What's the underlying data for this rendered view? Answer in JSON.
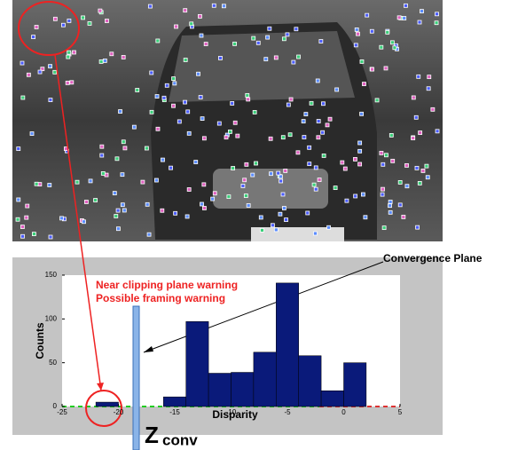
{
  "chart_data": {
    "type": "histogram",
    "bins": [
      -24,
      -22,
      -20,
      -18,
      -16,
      -14,
      -12,
      -10,
      -8,
      -6,
      -4,
      -2,
      0,
      2
    ],
    "values": [
      0,
      5,
      0,
      0,
      11,
      97,
      38,
      39,
      62,
      141,
      58,
      18,
      50
    ],
    "color": "#0a1a7a",
    "xlim": [
      -25,
      5
    ],
    "ylim": [
      0,
      150
    ],
    "xticks": [
      -25,
      -20,
      -15,
      -10,
      -5,
      0,
      5
    ],
    "yticks": [
      0,
      50,
      100,
      150
    ],
    "xlabel": "Disparity",
    "ylabel": "Counts",
    "annotations": {
      "convergence": "Convergence Plane",
      "warning1": "Near clipping plane warning",
      "warning2": "Possible framing warning",
      "zconv_main": "Z",
      "zconv_sub": "conv"
    }
  }
}
